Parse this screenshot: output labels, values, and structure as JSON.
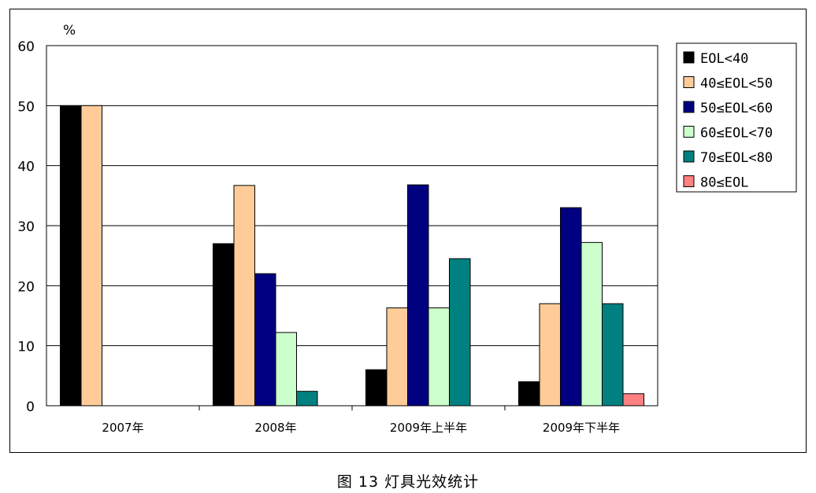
{
  "caption": "图 13 灯具光效统计",
  "chart_data": {
    "type": "bar",
    "unit_label": "%",
    "categories": [
      "2007年",
      "2008年",
      "2009年上半年",
      "2009年下半年"
    ],
    "ylim": [
      0,
      60
    ],
    "yticks": [
      0,
      10,
      20,
      30,
      40,
      50,
      60
    ],
    "grid": true,
    "legend_position": "right",
    "series": [
      {
        "name": "EOL<40",
        "color": "#000000",
        "values": [
          50,
          27,
          6,
          4
        ]
      },
      {
        "name": "40≤EOL<50",
        "color": "#FFCC99",
        "values": [
          50,
          36.7,
          16.3,
          17
        ]
      },
      {
        "name": "50≤EOL<60",
        "color": "#000080",
        "values": [
          0,
          22,
          36.8,
          33
        ]
      },
      {
        "name": "60≤EOL<70",
        "color": "#CCFFCC",
        "values": [
          0,
          12.2,
          16.3,
          27.2
        ]
      },
      {
        "name": "70≤EOL<80",
        "color": "#008080",
        "values": [
          0,
          2.4,
          24.5,
          17
        ]
      },
      {
        "name": "80≤EOL",
        "color": "#FF8080",
        "values": [
          0,
          0,
          0,
          2
        ]
      }
    ]
  }
}
